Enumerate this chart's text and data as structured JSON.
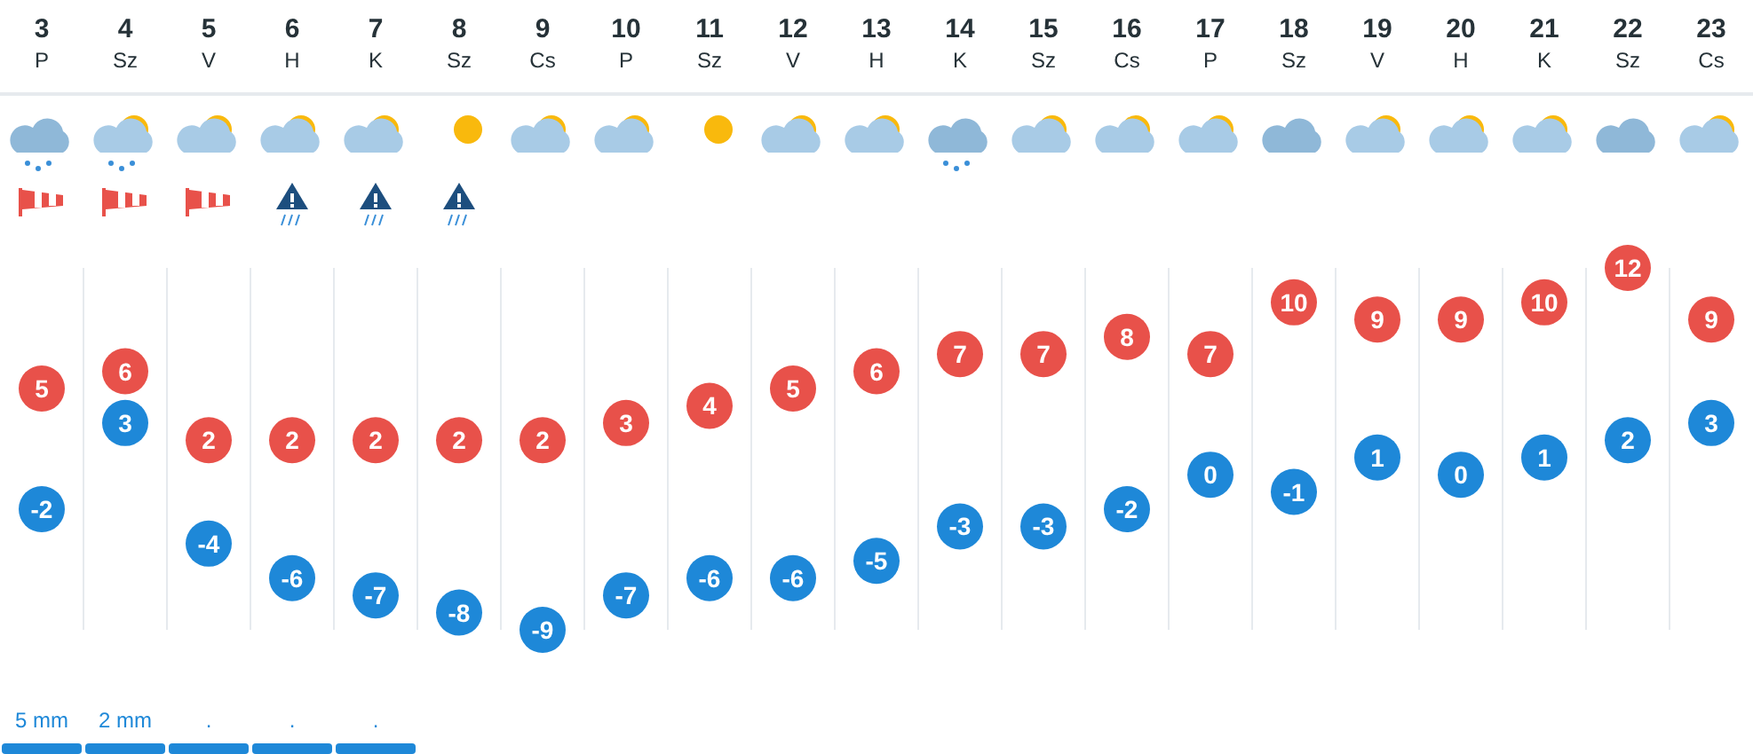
{
  "chart_data": {
    "type": "scatter",
    "categories": [
      "3\nP",
      "4\nSz",
      "5\nV",
      "6\nH",
      "7\nK",
      "8\nSz",
      "9\nCs",
      "10\nP",
      "11\nSz",
      "12\nV",
      "13\nH",
      "14\nK",
      "15\nSz",
      "16\nCs",
      "17\nP",
      "18\nSz",
      "19\nV",
      "20\nH",
      "21\nK",
      "22\nSz",
      "23\nCs"
    ],
    "series": [
      {
        "color": "#e8514a",
        "values": [
          5,
          6,
          2,
          2,
          2,
          2,
          2,
          3,
          4,
          5,
          6,
          7,
          7,
          8,
          7,
          10,
          9,
          9,
          10,
          12,
          9
        ]
      },
      {
        "color": "#1e88d8",
        "values": [
          -2,
          3,
          -4,
          -6,
          -7,
          -8,
          -9,
          -7,
          -6,
          -6,
          -5,
          -3,
          -3,
          -2,
          0,
          -1,
          1,
          0,
          1,
          2,
          3
        ]
      }
    ],
    "marker": "circle",
    "data_labels": true,
    "grid": "x",
    "legend": false,
    "annotations": [
      "5 mm",
      "2 mm",
      ".",
      ".",
      "."
    ]
  }
}
